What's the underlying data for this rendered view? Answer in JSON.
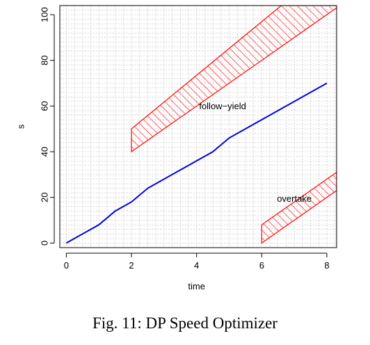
{
  "caption": "Fig. 11: DP Speed Optimizer",
  "chart_data": {
    "type": "line",
    "xlabel": "time",
    "ylabel": "s",
    "xlim": [
      -0.2,
      8.3
    ],
    "ylim": [
      -2,
      104
    ],
    "x_ticks": [
      0,
      2,
      4,
      6,
      8
    ],
    "y_ticks": [
      0,
      20,
      40,
      60,
      80,
      100
    ],
    "grid": true,
    "colors": {
      "line": "#0000dd",
      "region": "#ff0000",
      "grid": "#bbbbbb"
    },
    "series": [
      {
        "x": [
          0,
          1,
          1.5,
          2,
          2.5,
          3,
          3.5,
          4,
          4.5,
          5,
          5.5,
          6,
          6.5,
          7,
          7.5,
          8
        ],
        "y": [
          0,
          8,
          14,
          18,
          24,
          28,
          32,
          36,
          40,
          46,
          50,
          54,
          58,
          62,
          66,
          70
        ]
      }
    ],
    "regions": [
      {
        "label": "follow−yield",
        "label_at": [
          4.8,
          60
        ],
        "polygon": [
          [
            2,
            40
          ],
          [
            2,
            50
          ],
          [
            6.6,
            104
          ],
          [
            8.3,
            104
          ],
          [
            8.3,
            103
          ],
          [
            2,
            40
          ]
        ]
      },
      {
        "label": "overtake",
        "label_at": [
          7.0,
          19.5
        ],
        "polygon": [
          [
            6,
            0
          ],
          [
            6,
            8
          ],
          [
            8.3,
            31
          ],
          [
            8.3,
            23
          ],
          [
            6,
            0
          ]
        ]
      }
    ]
  }
}
